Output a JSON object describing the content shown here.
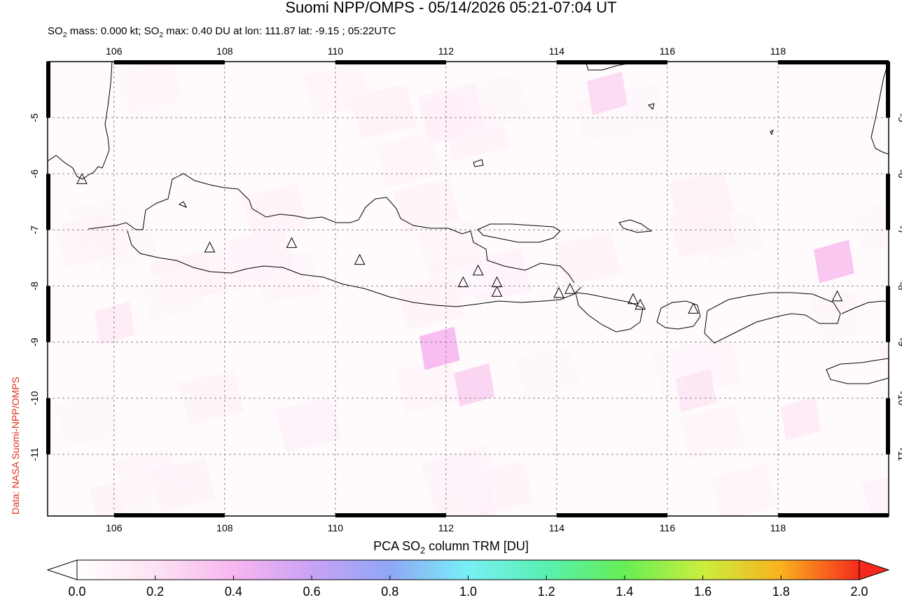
{
  "header": {
    "title": "Suomi NPP/OMPS - 05/14/2026 05:21-07:04 UT",
    "subtitle_parts": [
      "SO",
      "2",
      " mass: 0.000 kt; SO",
      "2",
      " max: 0.40 DU at lon: 111.87 lat: -9.15 ; 05:22UTC"
    ]
  },
  "credit": "Data: NASA Suomi-NPP/OMPS",
  "map": {
    "lon_range": [
      104.8,
      120.0
    ],
    "lat_range": [
      -12.1,
      -4.0
    ],
    "lon_ticks": [
      "106",
      "108",
      "110",
      "112",
      "114",
      "116",
      "118"
    ],
    "lon_tick_values": [
      106,
      108,
      110,
      112,
      114,
      116,
      118
    ],
    "lat_ticks": [
      "-5",
      "-6",
      "-7",
      "-8",
      "-9",
      "-10",
      "-11"
    ],
    "lat_tick_values": [
      -5,
      -6,
      -7,
      -8,
      -9,
      -10,
      -11
    ],
    "gridlines": "dashed",
    "volcanoes": [
      {
        "lon": 105.42,
        "lat": -6.1
      },
      {
        "lon": 107.73,
        "lat": -7.32
      },
      {
        "lon": 109.21,
        "lat": -7.24
      },
      {
        "lon": 110.44,
        "lat": -7.54
      },
      {
        "lon": 112.31,
        "lat": -7.94
      },
      {
        "lon": 112.58,
        "lat": -7.73
      },
      {
        "lon": 112.92,
        "lat": -7.94
      },
      {
        "lon": 112.92,
        "lat": -8.11
      },
      {
        "lon": 114.04,
        "lat": -8.13
      },
      {
        "lon": 114.24,
        "lat": -8.06
      },
      {
        "lon": 115.38,
        "lat": -8.24
      },
      {
        "lon": 115.51,
        "lat": -8.34
      },
      {
        "lon": 116.47,
        "lat": -8.41
      },
      {
        "lon": 119.07,
        "lat": -8.19
      }
    ]
  },
  "colorbar": {
    "label_parts": [
      "PCA SO",
      "2",
      " column TRM [DU]"
    ],
    "ticks": [
      "0.0",
      "0.2",
      "0.4",
      "0.6",
      "0.8",
      "1.0",
      "1.2",
      "1.4",
      "1.6",
      "1.8",
      "2.0"
    ],
    "tick_values": [
      0.0,
      0.2,
      0.4,
      0.6,
      0.8,
      1.0,
      1.2,
      1.4,
      1.6,
      1.8,
      2.0
    ],
    "colors": [
      "#ffffff",
      "#fde3f3",
      "#f7b6ef",
      "#c9a2f5",
      "#8fa6f7",
      "#78f0f5",
      "#58f0b0",
      "#66ee55",
      "#cbee3e",
      "#f9b11e",
      "#f52a1c"
    ]
  },
  "so2_cells": [
    {
      "lon": 111.87,
      "lat": -9.15,
      "du": 0.4
    },
    {
      "lon": 119.0,
      "lat": -7.6,
      "du": 0.35
    },
    {
      "lon": 112.5,
      "lat": -9.8,
      "du": 0.28
    },
    {
      "lon": 114.9,
      "lat": -4.6,
      "du": 0.25
    },
    {
      "lon": 116.5,
      "lat": -9.9,
      "du": 0.18
    },
    {
      "lon": 106.0,
      "lat": -8.7,
      "du": 0.15
    },
    {
      "lon": 118.4,
      "lat": -10.4,
      "du": 0.15
    }
  ]
}
